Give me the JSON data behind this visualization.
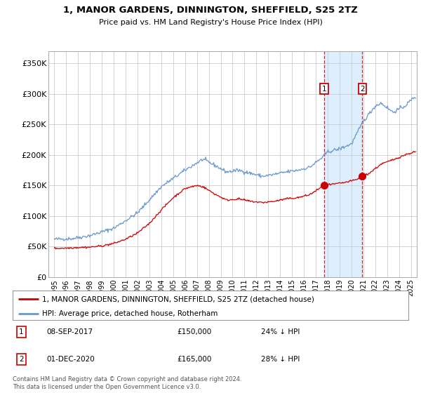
{
  "title": "1, MANOR GARDENS, DINNINGTON, SHEFFIELD, S25 2TZ",
  "subtitle": "Price paid vs. HM Land Registry's House Price Index (HPI)",
  "ylabel_ticks": [
    "£0",
    "£50K",
    "£100K",
    "£150K",
    "£200K",
    "£250K",
    "£300K",
    "£350K"
  ],
  "ylim": [
    0,
    370000
  ],
  "xlim_start": 1994.5,
  "xlim_end": 2025.5,
  "sale1_date": 2017.69,
  "sale1_price": 150000,
  "sale1_label": "1",
  "sale2_date": 2020.92,
  "sale2_price": 165000,
  "sale2_label": "2",
  "legend_line1": "1, MANOR GARDENS, DINNINGTON, SHEFFIELD, S25 2TZ (detached house)",
  "legend_line2": "HPI: Average price, detached house, Rotherham",
  "table_row1": [
    "1",
    "08-SEP-2017",
    "£150,000",
    "24% ↓ HPI"
  ],
  "table_row2": [
    "2",
    "01-DEC-2020",
    "£165,000",
    "28% ↓ HPI"
  ],
  "footnote": "Contains HM Land Registry data © Crown copyright and database right 2024.\nThis data is licensed under the Open Government Licence v3.0.",
  "red_color": "#cc0000",
  "blue_color": "#6699cc",
  "shade_color": "#ddeeff",
  "grid_color": "#cccccc",
  "background_color": "#ffffff"
}
